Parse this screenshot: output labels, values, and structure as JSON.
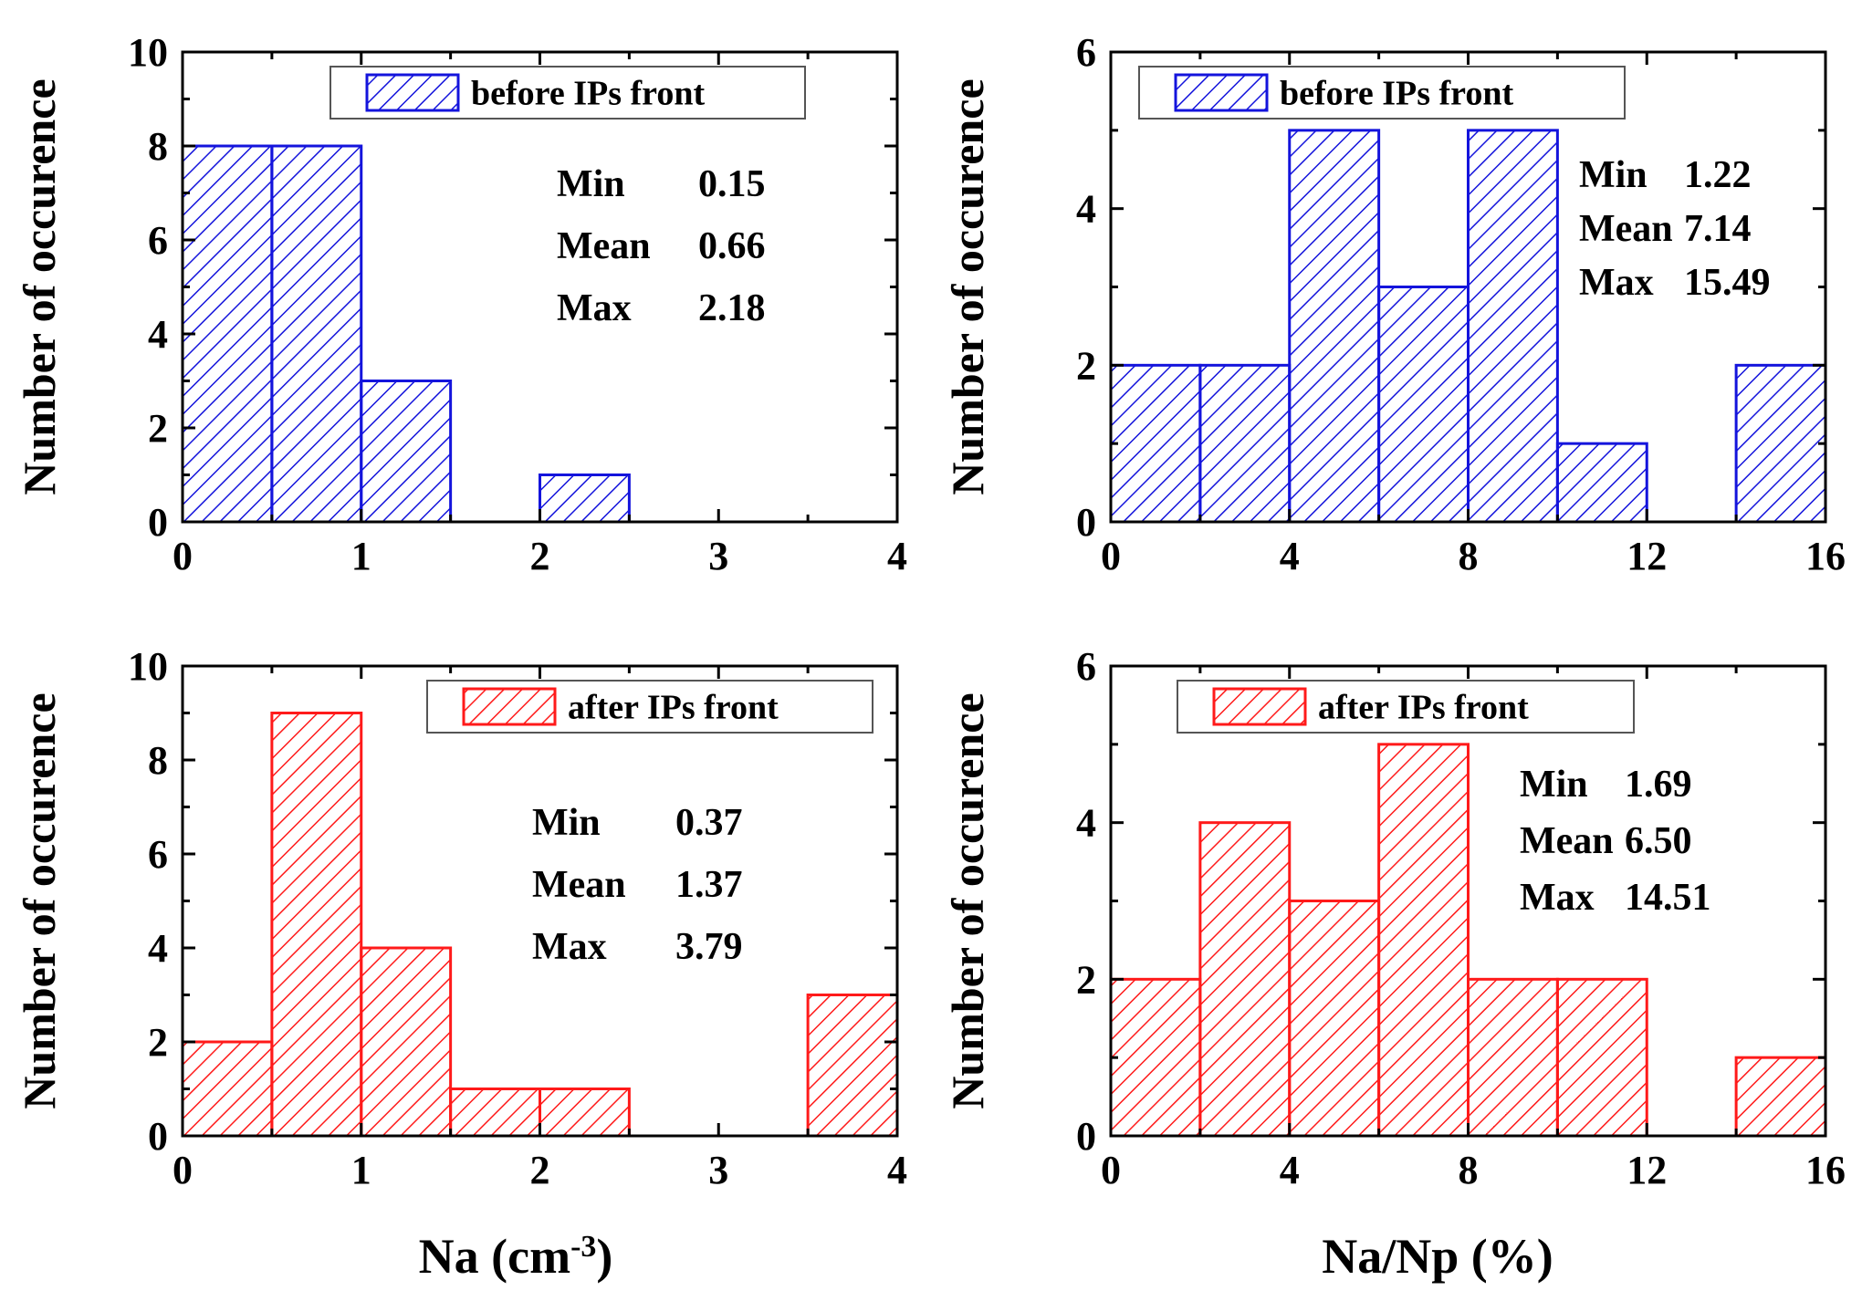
{
  "colors": {
    "before": "#1414dc",
    "after": "#ff1a1a",
    "axis": "#000000"
  },
  "xlabels": {
    "left": "Na (cm",
    "left_sup": "-3",
    "left_close": ")",
    "right": "Na/Np (%)"
  },
  "chart_data": [
    {
      "type": "bar",
      "panel": "top-left",
      "ylabel": "Number of occurence",
      "xlabel": "",
      "xlim": [
        0,
        4
      ],
      "ylim": [
        0,
        10
      ],
      "xticks": [
        0,
        1,
        2,
        3,
        4
      ],
      "yticks": [
        0,
        2,
        4,
        6,
        8,
        10
      ],
      "xtick_labels": [
        "0",
        "1",
        "2",
        "3",
        "4"
      ],
      "ytick_labels": [
        "0",
        "2",
        "4",
        "6",
        "8",
        "10"
      ],
      "bin_edges": [
        0,
        0.5,
        1,
        1.5,
        2,
        2.5,
        3,
        3.5,
        4
      ],
      "values": [
        8,
        8,
        3,
        0,
        1,
        0,
        0,
        0
      ],
      "series_name": "before IPs front",
      "color_key": "before",
      "legend": "before IPs front",
      "legend_position": "top-right",
      "stats": [
        {
          "label": "Min",
          "value": "0.15"
        },
        {
          "label": "Mean",
          "value": "0.66"
        },
        {
          "label": "Max",
          "value": "2.18"
        }
      ]
    },
    {
      "type": "bar",
      "panel": "top-right",
      "ylabel": "Number of occurence",
      "xlabel": "",
      "xlim": [
        0,
        16
      ],
      "ylim": [
        0,
        6
      ],
      "xticks": [
        0,
        4,
        8,
        12,
        16
      ],
      "yticks": [
        0,
        2,
        4,
        6
      ],
      "xtick_labels": [
        "0",
        "4",
        "8",
        "12",
        "16"
      ],
      "ytick_labels": [
        "0",
        "2",
        "4",
        "6"
      ],
      "bin_edges": [
        0,
        2,
        4,
        6,
        8,
        10,
        12,
        14,
        16
      ],
      "values": [
        2,
        2,
        5,
        3,
        5,
        1,
        0,
        2
      ],
      "series_name": "before IPs front",
      "color_key": "before",
      "legend": "before IPs front",
      "legend_position": "top",
      "stats": [
        {
          "label": "Min",
          "value": "1.22"
        },
        {
          "label": "Mean",
          "value": "7.14"
        },
        {
          "label": "Max",
          "value": "15.49"
        }
      ]
    },
    {
      "type": "bar",
      "panel": "bottom-left",
      "ylabel": "Number of occurence",
      "xlabel": "Na (cm-3)",
      "xlim": [
        0,
        4
      ],
      "ylim": [
        0,
        10
      ],
      "xticks": [
        0,
        1,
        2,
        3,
        4
      ],
      "yticks": [
        0,
        2,
        4,
        6,
        8,
        10
      ],
      "xtick_labels": [
        "0",
        "1",
        "2",
        "3",
        "4"
      ],
      "ytick_labels": [
        "0",
        "2",
        "4",
        "6",
        "8",
        "10"
      ],
      "bin_edges": [
        0,
        0.5,
        1,
        1.5,
        2,
        2.5,
        3,
        3.5,
        4
      ],
      "values": [
        2,
        9,
        4,
        1,
        1,
        0,
        0,
        3
      ],
      "series_name": "after IPs front",
      "color_key": "after",
      "legend": "after IPs front",
      "legend_position": "top-right",
      "stats": [
        {
          "label": "Min",
          "value": "0.37"
        },
        {
          "label": "Mean",
          "value": "1.37"
        },
        {
          "label": "Max",
          "value": "3.79"
        }
      ]
    },
    {
      "type": "bar",
      "panel": "bottom-right",
      "ylabel": "Number of occurence",
      "xlabel": "Na/Np (%)",
      "xlim": [
        0,
        16
      ],
      "ylim": [
        0,
        6
      ],
      "xticks": [
        0,
        4,
        8,
        12,
        16
      ],
      "yticks": [
        0,
        2,
        4,
        6
      ],
      "xtick_labels": [
        "0",
        "4",
        "8",
        "12",
        "16"
      ],
      "ytick_labels": [
        "0",
        "2",
        "4",
        "6"
      ],
      "bin_edges": [
        0,
        2,
        4,
        6,
        8,
        10,
        12,
        14,
        16
      ],
      "values": [
        2,
        4,
        3,
        5,
        2,
        2,
        0,
        1
      ],
      "series_name": "after IPs front",
      "color_key": "after",
      "legend": "after IPs front",
      "legend_position": "top",
      "stats": [
        {
          "label": "Min",
          "value": "1.69"
        },
        {
          "label": "Mean",
          "value": "6.50"
        },
        {
          "label": "Max",
          "value": "14.51"
        }
      ]
    }
  ]
}
